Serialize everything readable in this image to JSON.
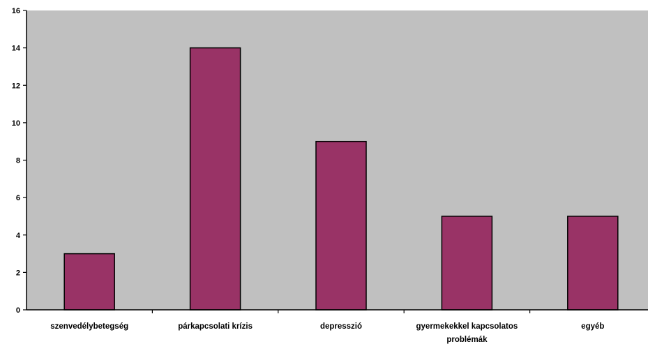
{
  "chart_data": {
    "type": "bar",
    "categories": [
      [
        "szenvedélybetegség"
      ],
      [
        "párkapcsolati krízis"
      ],
      [
        "depresszió"
      ],
      [
        "gyermekekkel kapcsolatos",
        "problémák"
      ],
      [
        "egyéb"
      ]
    ],
    "values": [
      3,
      14,
      9,
      5,
      5
    ],
    "ylim": [
      0,
      16
    ],
    "yticks": [
      0,
      2,
      4,
      6,
      8,
      10,
      12,
      14,
      16
    ],
    "grid": false,
    "legend": "none",
    "colors": {
      "plot_background": "#c0c0c0",
      "bar_fill": "#993366",
      "bar_stroke": "#000000",
      "axis": "#000000"
    }
  }
}
